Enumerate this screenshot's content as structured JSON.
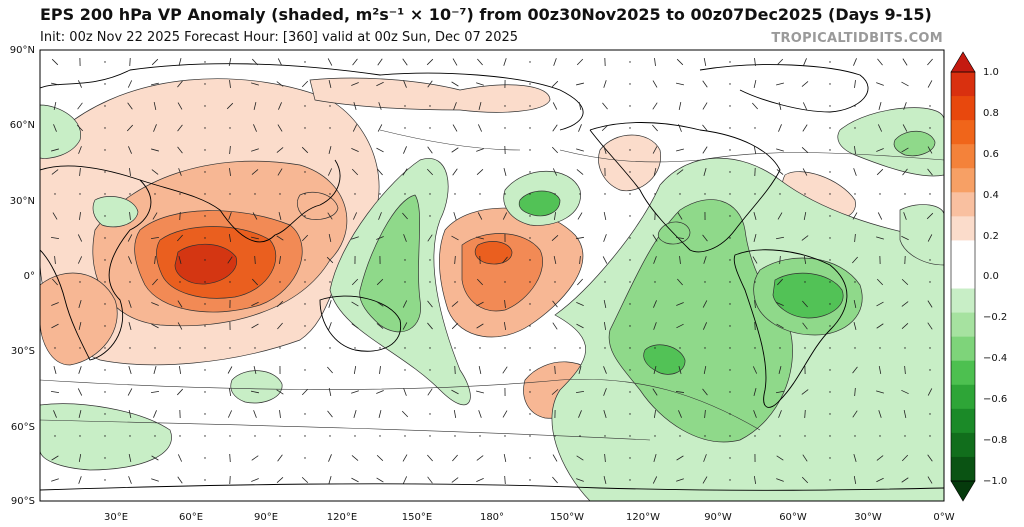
{
  "header": {
    "title": "EPS 200 hPa VP Anomaly (shaded, m²s⁻¹ × 10⁻⁷) from 00z30Nov2025 to 00z07Dec2025 (Days 9-15)",
    "subtitle": "Init: 00z Nov 22 2025   Forecast Hour: [360]   valid at 00z Sun, Dec 07 2025",
    "brand": "TROPICALTIDBITS.COM"
  },
  "map": {
    "lat_labels": [
      "90°N",
      "60°N",
      "30°N",
      "0°",
      "30°S",
      "60°S",
      "90°S"
    ],
    "lon_labels": [
      "30°E",
      "60°E",
      "90°E",
      "120°E",
      "150°E",
      "180°",
      "150°W",
      "120°W",
      "90°W",
      "60°W",
      "30°W",
      "0°W"
    ]
  },
  "colorbar": {
    "labels": [
      "1.0",
      "0.8",
      "0.6",
      "0.4",
      "0.2",
      "0.0",
      "−0.2",
      "−0.4",
      "−0.6",
      "−0.8",
      "−1.0"
    ],
    "colors": [
      "#c41a10",
      "#d9300f",
      "#e8480d",
      "#f0651a",
      "#f4823a",
      "#f7a065",
      "#f9c0a0",
      "#fbdccb",
      "#ffffff",
      "#ffffff",
      "#c8eec6",
      "#a6e2a0",
      "#7ed47a",
      "#4dc050",
      "#2ea537",
      "#1b8a28",
      "#116e1c",
      "#0a5313",
      "#053a0c"
    ]
  },
  "shading": {
    "positive_colors": [
      "#fbdccb",
      "#f7b794",
      "#f28a55",
      "#ea5f1f",
      "#d43612"
    ],
    "negative_colors": [
      "#c8eec6",
      "#8fd98a",
      "#52c256",
      "#2f9e3a"
    ]
  }
}
